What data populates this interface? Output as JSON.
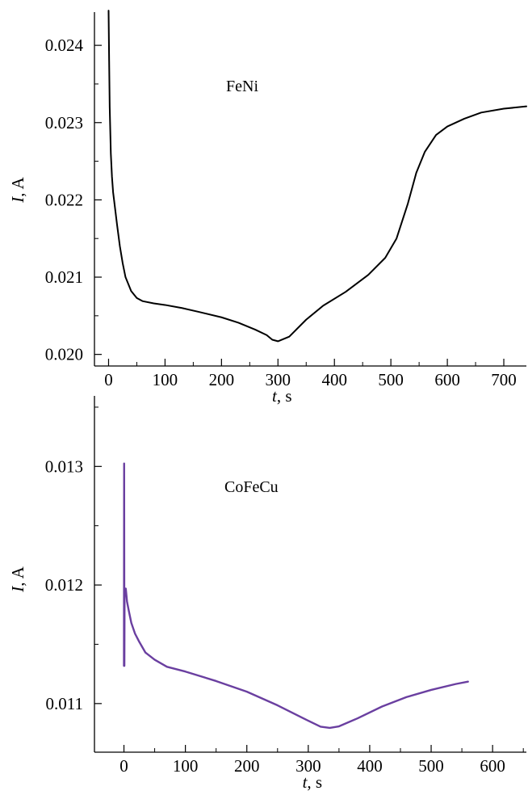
{
  "colors": {
    "panel_1_line": "#000000",
    "panel_2_line": "#6a3fa0"
  },
  "chart_data": [
    {
      "type": "line",
      "annotation": "FeNi",
      "xlabel": {
        "var": "t",
        "unit": ", s"
      },
      "ylabel": {
        "var": "I",
        "unit": ", A"
      },
      "xlim": [
        -25,
        740
      ],
      "ylim": [
        0.01985,
        0.02443
      ],
      "xticks": [
        "0",
        "100",
        "200",
        "300",
        "400",
        "500",
        "600",
        "700"
      ],
      "xtick_values": [
        0,
        100,
        200,
        300,
        400,
        500,
        600,
        700
      ],
      "yticks": [
        "0.020",
        "0.021",
        "0.022",
        "0.023",
        "0.024"
      ],
      "ytick_values": [
        0.02,
        0.021,
        0.022,
        0.023,
        0.024
      ],
      "series": [
        {
          "color": "#000000",
          "x": [
            0,
            1,
            2,
            4,
            6,
            8,
            10,
            15,
            20,
            25,
            30,
            40,
            50,
            60,
            80,
            100,
            130,
            160,
            200,
            230,
            260,
            280,
            290,
            300,
            320,
            350,
            380,
            420,
            460,
            490,
            510,
            530,
            545,
            560,
            580,
            600,
            630,
            660,
            700,
            740
          ],
          "y": [
            0.02445,
            0.0238,
            0.0232,
            0.0226,
            0.0223,
            0.0221,
            0.02198,
            0.02168,
            0.0214,
            0.02118,
            0.021,
            0.02082,
            0.02073,
            0.02069,
            0.02066,
            0.02064,
            0.0206,
            0.02055,
            0.02048,
            0.02041,
            0.02032,
            0.02025,
            0.02019,
            0.02017,
            0.02023,
            0.02045,
            0.02063,
            0.02081,
            0.02103,
            0.02125,
            0.0215,
            0.02195,
            0.02235,
            0.02262,
            0.02284,
            0.02295,
            0.02305,
            0.02313,
            0.02318,
            0.02321
          ]
        }
      ]
    },
    {
      "type": "line",
      "annotation": "CoFeCu",
      "xlabel": {
        "var": "t",
        "unit": ", s"
      },
      "ylabel": {
        "var": "I",
        "unit": ", A"
      },
      "xlim": [
        -48,
        655
      ],
      "ylim": [
        0.01059,
        0.013595
      ],
      "xticks": [
        "0",
        "100",
        "200",
        "300",
        "400",
        "500",
        "600"
      ],
      "xtick_values": [
        0,
        100,
        200,
        300,
        400,
        500,
        600
      ],
      "yticks": [
        "0.011",
        "0.012",
        "0.013"
      ],
      "ytick_values": [
        0.011,
        0.012,
        0.013
      ],
      "series": [
        {
          "color": "#6a3fa0",
          "x": [
            0,
            0.3,
            0.7,
            1,
            3,
            5,
            8,
            12,
            18,
            25,
            35,
            50,
            70,
            100,
            150,
            200,
            250,
            300,
            320,
            335,
            350,
            380,
            420,
            460,
            500,
            540,
            560
          ],
          "y": [
            0.011318,
            0.013025,
            0.011318,
            0.01193,
            0.01197,
            0.01186,
            0.01178,
            0.01168,
            0.01159,
            0.01152,
            0.01143,
            0.01137,
            0.01131,
            0.01127,
            0.01119,
            0.0111,
            0.010985,
            0.010855,
            0.010805,
            0.010795,
            0.010808,
            0.010875,
            0.010975,
            0.011055,
            0.011115,
            0.011165,
            0.011185
          ]
        }
      ]
    }
  ]
}
